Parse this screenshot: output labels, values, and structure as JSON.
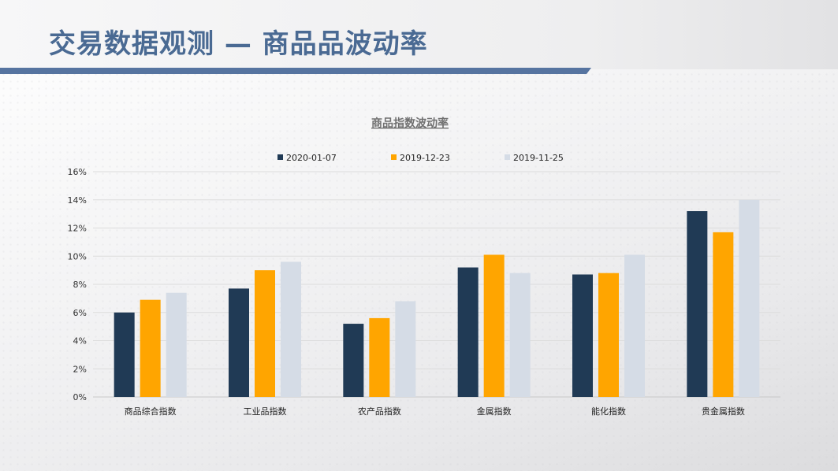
{
  "page": {
    "title": "交易数据观测 — 商品品波动率"
  },
  "colors": {
    "title": "#4a6a93",
    "title_bar": "#5674a0"
  },
  "chart_data": {
    "type": "bar",
    "title": "商品指数波动率",
    "xlabel": "",
    "ylabel": "",
    "categories": [
      "商品综合指数",
      "工业品指数",
      "农产品指数",
      "金属指数",
      "能化指数",
      "贵金属指数"
    ],
    "series": [
      {
        "name": "2020-01-07",
        "color": "#203a55",
        "values": [
          6.0,
          7.7,
          5.2,
          9.2,
          8.7,
          13.2
        ]
      },
      {
        "name": "2019-12-23",
        "color": "#ffa500",
        "values": [
          6.9,
          9.0,
          5.6,
          10.1,
          8.8,
          11.7
        ]
      },
      {
        "name": "2019-11-25",
        "color": "#d5dce6",
        "values": [
          7.4,
          9.6,
          6.8,
          8.8,
          10.1,
          14.0
        ]
      }
    ],
    "y_ticks": [
      "0%",
      "2%",
      "4%",
      "6%",
      "8%",
      "10%",
      "12%",
      "14%",
      "16%"
    ],
    "ylim": [
      0,
      16
    ],
    "grid": true,
    "legend_position": "top"
  }
}
